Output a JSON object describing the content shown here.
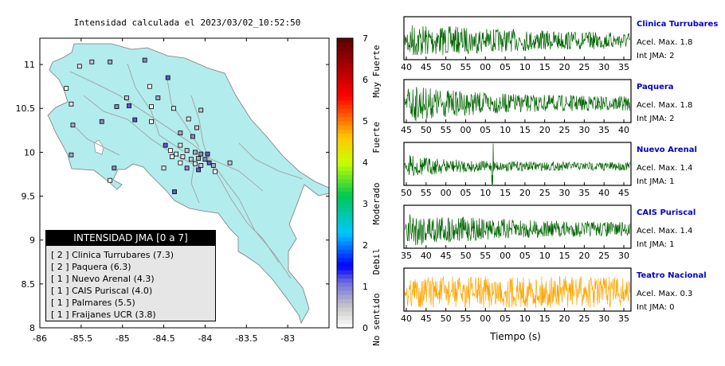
{
  "map": {
    "title": "Intensidad calculada el 2023/03/02_10:52:50",
    "x_ticks": [
      "-86",
      "-85.5",
      "-85",
      "-84.5",
      "-84",
      "-83.5",
      "-83"
    ],
    "y_ticks": [
      "11",
      "10.5",
      "10",
      "9.5",
      "9",
      "8.5",
      "8"
    ],
    "xlim": [
      -86,
      -82.5
    ],
    "ylim": [
      8,
      11.3
    ],
    "land_color": "#b3ecec",
    "stations": [
      [
        -85.68,
        10.73
      ],
      [
        -85.52,
        10.98
      ],
      [
        -85.37,
        11.03
      ],
      [
        -85.15,
        11.03
      ],
      [
        -84.73,
        11.05
      ],
      [
        -84.45,
        10.85
      ],
      [
        -84.67,
        10.75
      ],
      [
        -85.62,
        10.55
      ],
      [
        -84.95,
        10.62
      ],
      [
        -84.57,
        10.62
      ],
      [
        -85.07,
        10.52
      ],
      [
        -84.92,
        10.53
      ],
      [
        -84.65,
        10.52
      ],
      [
        -84.38,
        10.5
      ],
      [
        -84.05,
        10.48
      ],
      [
        -85.6,
        10.31
      ],
      [
        -85.25,
        10.35
      ],
      [
        -84.85,
        10.37
      ],
      [
        -84.65,
        10.35
      ],
      [
        -84.2,
        10.38
      ],
      [
        -84.1,
        10.28
      ],
      [
        -84.3,
        10.22
      ],
      [
        -84.15,
        10.18
      ],
      [
        -84.48,
        10.08
      ],
      [
        -84.42,
        10.02
      ],
      [
        -84.3,
        10.08
      ],
      [
        -84.22,
        10.02
      ],
      [
        -84.12,
        10.0
      ],
      [
        -84.05,
        9.98
      ],
      [
        -83.97,
        9.98
      ],
      [
        -84.4,
        9.95
      ],
      [
        -84.27,
        9.95
      ],
      [
        -84.17,
        9.92
      ],
      [
        -84.08,
        9.93
      ],
      [
        -84.0,
        9.92
      ],
      [
        -83.95,
        9.88
      ],
      [
        -84.3,
        9.88
      ],
      [
        -84.12,
        9.87
      ],
      [
        -84.05,
        9.85
      ],
      [
        -83.9,
        9.85
      ],
      [
        -84.22,
        9.82
      ],
      [
        -84.08,
        9.8
      ],
      [
        -83.88,
        9.78
      ],
      [
        -84.5,
        9.82
      ],
      [
        -83.7,
        9.88
      ],
      [
        -85.62,
        9.97
      ],
      [
        -85.1,
        9.82
      ],
      [
        -84.37,
        9.55
      ],
      [
        -85.15,
        9.68
      ],
      [
        -84.35,
        9.98
      ]
    ],
    "station_colors": [
      "#ffffff",
      "#e0e0ea",
      "#c6c6d6",
      "#a8a8c8",
      "#8a8ac0",
      "#5c5cc8"
    ],
    "colorbar": {
      "ticks": [
        "0",
        "1",
        "2",
        "3",
        "4",
        "5",
        "6",
        "7"
      ],
      "levels": [
        "No sentido",
        "Debil",
        "Moderado",
        "Fuerte",
        "Muy Fuerte"
      ]
    },
    "legend": {
      "title": "INTENSIDAD JMA [0 a 7]",
      "items": [
        "[ 2 ]  Clinica Turrubares (7.3)",
        "[ 2 ]  Paquera (6.3)",
        "[ 1 ]  Nuevo Arenal (4.3)",
        "[ 1 ]  CAIS Puriscal (4.0)",
        "[ 1 ]  Palmares (5.5)",
        "[ 1 ]  Fraijanes UCR (3.8)"
      ]
    }
  },
  "traces": {
    "xlabel": "Tiempo (s)",
    "panels": [
      {
        "name": "Clinica Turrubares",
        "accel": "Acel. Max. 1.8",
        "jma": "Int JMA: 2",
        "color": "#006400",
        "ticks": [
          "40",
          "45",
          "50",
          "55",
          "00",
          "05",
          "10",
          "15",
          "20",
          "25",
          "30",
          "35"
        ],
        "peak": 0.9,
        "decay": 0.55,
        "burst": []
      },
      {
        "name": "Paquera",
        "accel": "Acel. Max. 1.8",
        "jma": "Int JMA: 2",
        "color": "#006400",
        "ticks": [
          "45",
          "50",
          "55",
          "00",
          "05",
          "10",
          "15",
          "20",
          "25",
          "30",
          "35",
          "40"
        ],
        "peak": 1.0,
        "decay": 0.3,
        "burst": []
      },
      {
        "name": "Nuevo Arenal",
        "accel": "Acel. Max. 1.4",
        "jma": "Int JMA: 1",
        "color": "#006400",
        "ticks": [
          "50",
          "55",
          "00",
          "05",
          "10",
          "15",
          "20",
          "25",
          "30",
          "35",
          "40",
          "45"
        ],
        "peak": 0.6,
        "decay": 0.2,
        "burst": [
          0.39
        ]
      },
      {
        "name": "CAIS Puriscal",
        "accel": "Acel. Max. 1.4",
        "jma": "Int JMA: 1",
        "color": "#006400",
        "ticks": [
          "35",
          "40",
          "45",
          "50",
          "55",
          "00",
          "05",
          "10",
          "15",
          "20",
          "25",
          "30"
        ],
        "peak": 0.95,
        "decay": 0.35,
        "burst": []
      },
      {
        "name": "Teatro Nacional",
        "accel": "Acel. Max. 0.3",
        "jma": "Int JMA: 0",
        "color": "#ffa500",
        "ticks": [
          "40",
          "45",
          "50",
          "55",
          "00",
          "05",
          "10",
          "15",
          "20",
          "25",
          "30",
          "35"
        ],
        "peak": 0.8,
        "decay": 0.0,
        "burst": []
      }
    ]
  }
}
